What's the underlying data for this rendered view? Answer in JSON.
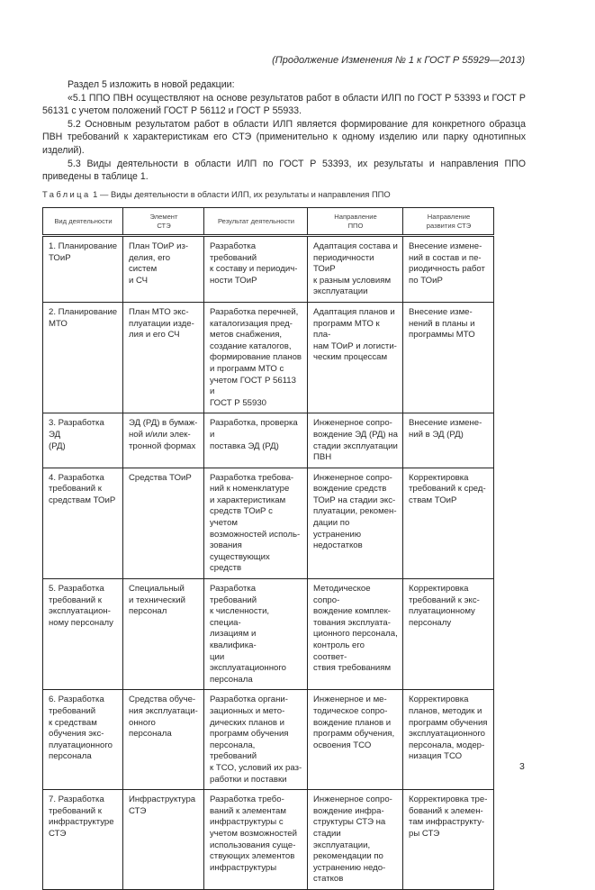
{
  "running_header": "(Продолжение Изменения № 1 к ГОСТ Р 55929—2013)",
  "paragraphs": [
    "Раздел 5 изложить в новой редакции:",
    "«5.1 ППО ПВН осуществляют на основе результатов работ в области ИЛП по ГОСТ Р 53393 и ГОСТ Р 56131 с учетом положений ГОСТ Р 56112 и ГОСТ Р 55933.",
    "5.2 Основным результатом работ в области ИЛП является формирование для конкретного образца ПВН требований к характеристикам его СТЭ (применительно к одному изделию или парку однотипных изделий).",
    "5.3 Виды деятельности в области ИЛП по ГОСТ Р 53393, их результаты и направления ППО приведены в таблице 1."
  ],
  "table": {
    "caption_label": "Таблица",
    "caption_text": " 1 — Виды деятельности в области ИЛП, их результаты и направления ППО",
    "headers": [
      "Вид деятельности",
      "Элемент\nСТЭ",
      "Результат деятельности",
      "Направление\nППО",
      "Направление\nразвития СТЭ"
    ],
    "rows": [
      [
        "1. Планирование\nТОиР",
        "План ТОиР из-\nделия, его систем\nи СЧ",
        "Разработка требований\nк составу и периодич-\nности ТОиР",
        "Адаптация состава и\nпериодичности ТОиР\nк разным условиям\nэксплуатации",
        "Внесение измене-\nний в состав и пе-\nриодичность работ\nпо ТОиР"
      ],
      [
        "2. Планирование\nМТО",
        "План МТО экс-\nплуатации изде-\nлия и его СЧ",
        "Разработка перечней,\nкаталогизация пред-\nметов снабжения,\nсоздание каталогов,\nформирование планов\nи программ МТО с\nучетом ГОСТ Р 56113 и\nГОСТ Р 55930",
        "Адаптация планов и\nпрограмм МТО к пла-\nнам ТОиР и логисти-\nческим процессам",
        "Внесение изме-\nнений в планы и\nпрограммы МТО"
      ],
      [
        "3. Разработка ЭД\n(РД)",
        "ЭД (РД) в бумаж-\nной и/или элек-\nтронной формах",
        "Разработка, проверка и\nпоставка ЭД (РД)",
        "Инженерное сопро-\nвождение ЭД (РД) на\nстадии эксплуатации\nПВН",
        "Внесение измене-\nний в ЭД (РД)"
      ],
      [
        "4. Разработка\nтребований к\nсредствам ТОиР",
        "Средства ТОиР",
        "Разработка требова-\nний к номенклатуре\nи характеристикам\nсредств ТОиР с учетом\nвозможностей исполь-\nзования существующих\nсредств",
        "Инженерное сопро-\nвождение средств\nТОиР на стадии экс-\nплуатации, рекомен-\nдации по устранению\nнедостатков",
        "Корректировка\nтребований к сред-\nствам ТОиР"
      ],
      [
        "5. Разработка\nтребований к\nэксплуатацион-\nному персоналу",
        "Специальный\nи технический\nперсонал",
        "Разработка требований\nк численности, специа-\nлизациям и квалифика-\nции эксплуатационного\nперсонала",
        "Методическое сопро-\nвождение комплек-\nтования эксплуата-\nционного персонала,\nконтроль его соответ-\nствия требованиям",
        "Корректировка\nтребований к экс-\nплуатационному\nперсоналу"
      ],
      [
        "6. Разработка\nтребований\nк средствам\nобучения экс-\nплуатационного\nперсонала",
        "Средства обуче-\nния эксплуатаци-\nонного персонала",
        "Разработка органи-\nзационных и мето-\nдических планов и\nпрограмм обучения\nперсонала, требований\nк ТСО, условий их раз-\nработки и поставки",
        "Инженерное и ме-\nтодическое сопро-\nвождение планов и\nпрограмм обучения,\nосвоения ТСО",
        "Корректировка\nпланов, методик и\nпрограмм обучения\nэксплуатационного\nперсонала, модер-\nнизация ТСО"
      ],
      [
        "7. Разработка\nтребований к\nинфраструктуре\nСТЭ",
        "Инфраструктура\nСТЭ",
        "Разработка требо-\nваний к элементам\nинфраструктуры с\nучетом возможностей\nиспользования суще-\nствующих элементов\nинфраструктуры",
        "Инженерное сопро-\nвождение инфра-\nструктуры СТЭ на\nстадии эксплуатации,\nрекомендации по\nустранению недо-\nстатков",
        "Корректировка тре-\nбований к элемен-\nтам инфраструкту-\nры СТЭ"
      ]
    ]
  },
  "page_number": "3"
}
